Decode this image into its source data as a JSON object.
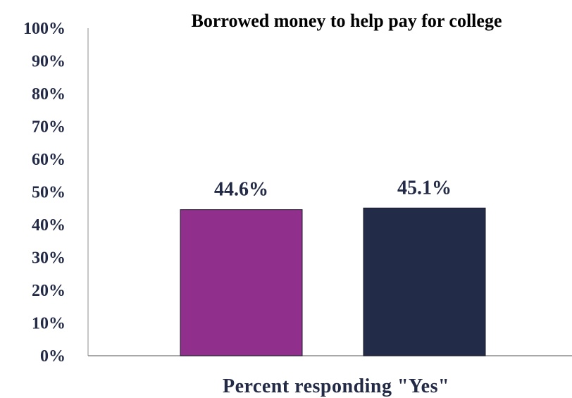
{
  "chart_data": {
    "type": "bar",
    "title": "Borrowed money to help pay for college",
    "xlabel": "Percent responding \"Yes\"",
    "ylabel": "",
    "ylim": [
      0,
      100
    ],
    "yticks": [
      "0%",
      "10%",
      "20%",
      "30%",
      "40%",
      "50%",
      "60%",
      "70%",
      "80%",
      "90%",
      "100%"
    ],
    "grid": false,
    "legend": "none",
    "series": [
      {
        "value": 44.6,
        "label": "44.6%",
        "color": "#91308c"
      },
      {
        "value": 45.1,
        "label": "45.1%",
        "color": "#222b47"
      }
    ]
  }
}
